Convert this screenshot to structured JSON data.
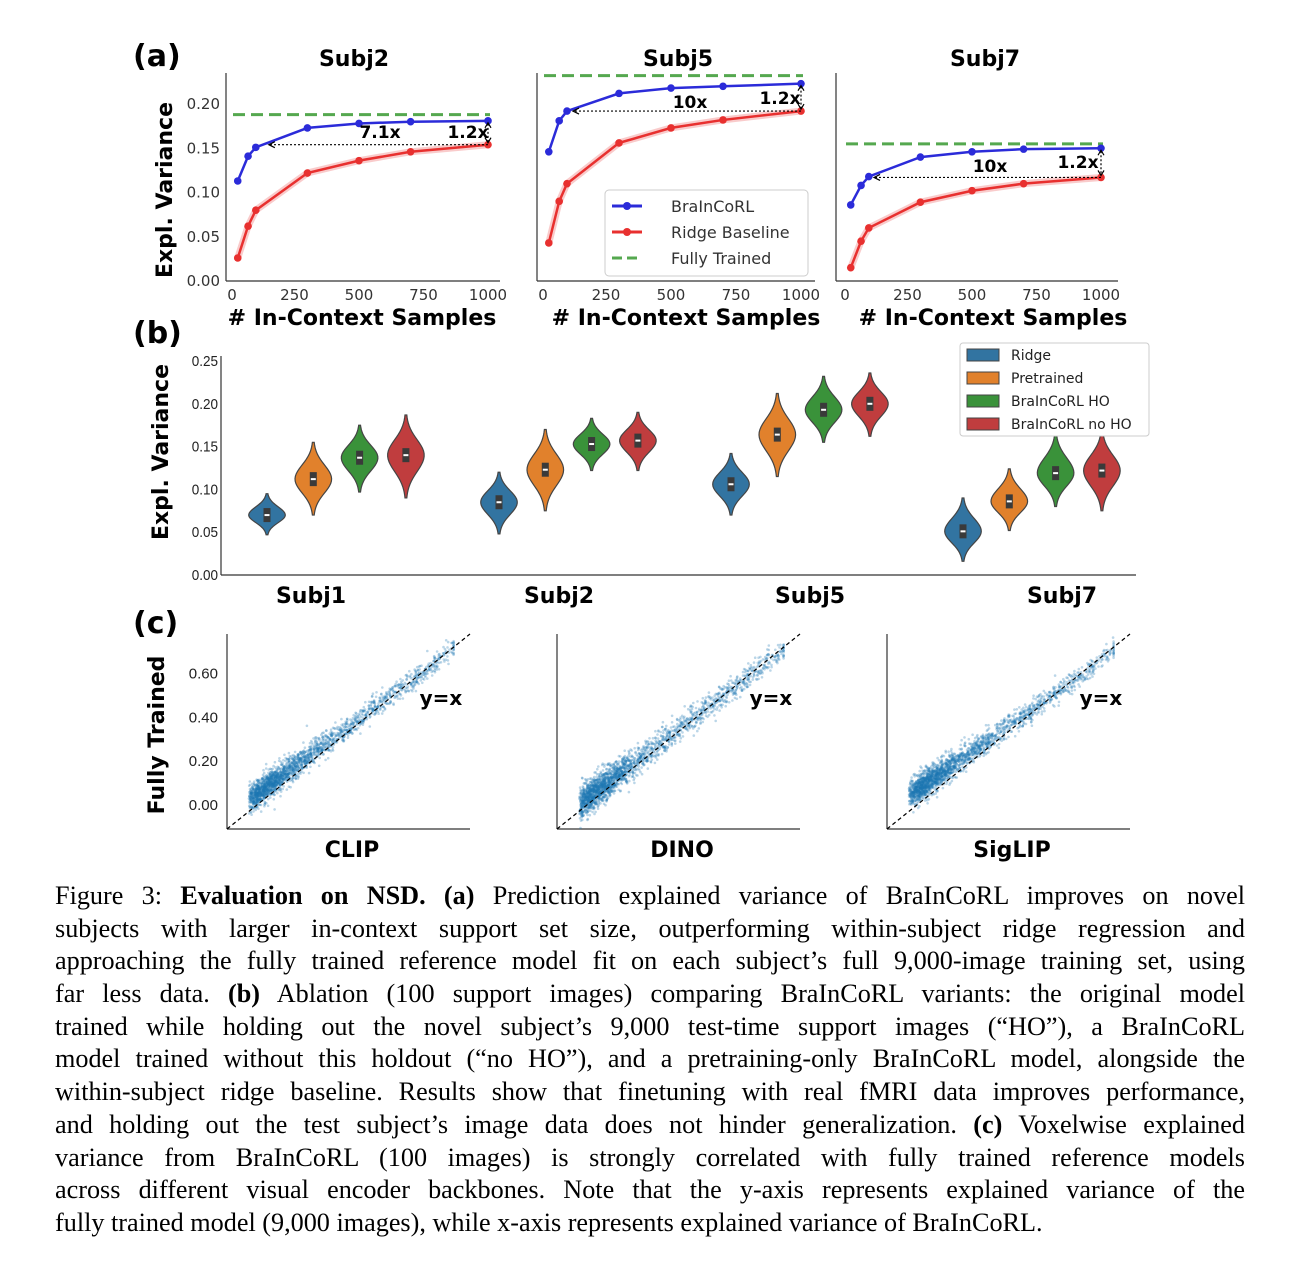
{
  "panel_labels": {
    "a": "(a)",
    "b": "(b)",
    "c": "(c)"
  },
  "chart_data": [
    {
      "panel": "a",
      "type": "line",
      "ylabel": "Expl. Variance",
      "xlabel": "# In-Context Samples",
      "xlim": [
        0,
        1000
      ],
      "ylim": [
        0,
        0.235
      ],
      "xticks": [
        "0",
        "250",
        "500",
        "750",
        "1000"
      ],
      "yticks": [
        "0.00",
        "0.05",
        "0.10",
        "0.15",
        "0.20"
      ],
      "legend": {
        "placement": "lower-right of Subj5",
        "entries": [
          "BraInCoRL",
          "Ridge Baseline",
          "Fully Trained"
        ]
      },
      "colors": {
        "BraInCoRL": "#2b2bd9",
        "Ridge Baseline": "#e8302f",
        "Fully Trained": "#55a84f"
      },
      "x": [
        30,
        70,
        100,
        300,
        500,
        700,
        1000
      ],
      "subplots": [
        {
          "title": "Subj2",
          "series": [
            {
              "name": "BraInCoRL",
              "values": [
                0.113,
                0.141,
                0.151,
                0.173,
                0.178,
                0.18,
                0.181
              ]
            },
            {
              "name": "Ridge Baseline",
              "values": [
                0.026,
                0.062,
                0.08,
                0.122,
                0.136,
                0.146,
                0.154
              ]
            },
            {
              "name": "Fully Trained",
              "value": 0.188
            }
          ],
          "annotations": [
            "7.1x",
            "1.2x"
          ]
        },
        {
          "title": "Subj5",
          "series": [
            {
              "name": "BraInCoRL",
              "values": [
                0.146,
                0.181,
                0.192,
                0.212,
                0.218,
                0.22,
                0.223
              ]
            },
            {
              "name": "Ridge Baseline",
              "values": [
                0.043,
                0.09,
                0.11,
                0.156,
                0.173,
                0.182,
                0.192
              ]
            },
            {
              "name": "Fully Trained",
              "value": 0.232
            }
          ],
          "annotations": [
            "10x",
            "1.2x"
          ]
        },
        {
          "title": "Subj7",
          "series": [
            {
              "name": "BraInCoRL",
              "values": [
                0.086,
                0.108,
                0.118,
                0.14,
                0.146,
                0.149,
                0.15
              ]
            },
            {
              "name": "Ridge Baseline",
              "values": [
                0.015,
                0.045,
                0.06,
                0.089,
                0.102,
                0.11,
                0.117
              ]
            },
            {
              "name": "Fully Trained",
              "value": 0.155
            }
          ],
          "annotations": [
            "10x",
            "1.2x"
          ]
        }
      ]
    },
    {
      "panel": "b",
      "type": "violin",
      "ylabel": "Expl. Variance",
      "ylim": [
        0,
        0.25
      ],
      "yticks": [
        "0.00",
        "0.05",
        "0.10",
        "0.15",
        "0.20",
        "0.25"
      ],
      "categories": [
        "Subj1",
        "Subj2",
        "Subj5",
        "Subj7"
      ],
      "legend": {
        "placement": "top-right",
        "entries": [
          "Ridge",
          "Pretrained",
          "BraInCoRL HO",
          "BraInCoRL no HO"
        ]
      },
      "colors": [
        "#3274a1",
        "#e1812c",
        "#3a923a",
        "#c03d3e"
      ],
      "series": [
        {
          "name": "Ridge",
          "median": [
            0.07,
            0.085,
            0.106,
            0.051
          ],
          "min": [
            0.047,
            0.048,
            0.07,
            0.016
          ],
          "max": [
            0.095,
            0.12,
            0.142,
            0.09
          ]
        },
        {
          "name": "Pretrained",
          "median": [
            0.112,
            0.123,
            0.164,
            0.086
          ],
          "min": [
            0.07,
            0.075,
            0.115,
            0.052
          ],
          "max": [
            0.155,
            0.17,
            0.212,
            0.124
          ]
        },
        {
          "name": "BraInCoRL HO",
          "median": [
            0.137,
            0.153,
            0.193,
            0.119
          ],
          "min": [
            0.097,
            0.122,
            0.155,
            0.08
          ],
          "max": [
            0.175,
            0.183,
            0.232,
            0.165
          ]
        },
        {
          "name": "BraInCoRL no HO",
          "median": [
            0.14,
            0.157,
            0.2,
            0.122
          ],
          "min": [
            0.09,
            0.122,
            0.162,
            0.075
          ],
          "max": [
            0.187,
            0.19,
            0.236,
            0.168
          ]
        }
      ]
    },
    {
      "panel": "c",
      "type": "scatter",
      "ylabel": "Fully Trained",
      "ylim": [
        -0.11,
        0.78
      ],
      "xlim": [
        -0.11,
        0.78
      ],
      "yticks": [
        "0.00",
        "0.20",
        "0.40",
        "0.60"
      ],
      "reference_line": "y=x",
      "color": "#1f77b4",
      "subplots": [
        {
          "xlabel": "CLIP"
        },
        {
          "xlabel": "DINO"
        },
        {
          "xlabel": "SigLIP"
        }
      ]
    }
  ],
  "caption": {
    "lines": [
      [
        {
          "t": "Figure 3: "
        },
        {
          "t": "Evaluation on NSD.",
          "b": true
        },
        {
          "t": " "
        },
        {
          "t": "(a)",
          "b": true
        },
        {
          "t": " Prediction explained variance of BraInCoRL improves on novel"
        }
      ],
      [
        {
          "t": "subjects with larger in-context support set size, outperforming within-subject ridge regression and"
        }
      ],
      [
        {
          "t": "approaching the fully trained reference model fit on each subject’s full 9,000-image training set, using"
        }
      ],
      [
        {
          "t": "far less data. "
        },
        {
          "t": "(b)",
          "b": true
        },
        {
          "t": " Ablation (100 support images) comparing BraInCoRL variants: the original model"
        }
      ],
      [
        {
          "t": "trained while holding out the novel subject’s 9,000 test-time support images (“HO”), a BraInCoRL"
        }
      ],
      [
        {
          "t": "model trained without this holdout (“no HO”), and a pretraining-only BraInCoRL model, alongside the"
        }
      ],
      [
        {
          "t": "within-subject ridge baseline. Results show that finetuning with real fMRI data improves performance,"
        }
      ],
      [
        {
          "t": "and holding out the test subject’s image data does not hinder generalization. "
        },
        {
          "t": "(c)",
          "b": true
        },
        {
          "t": " Voxelwise explained"
        }
      ],
      [
        {
          "t": "variance from BraInCoRL (100 images) is strongly correlated with fully trained reference models"
        }
      ],
      [
        {
          "t": "across different visual encoder backbones. Note that the y-axis represents explained variance of the"
        }
      ],
      [
        {
          "t": "fully trained model (9,000 images), while x-axis represents explained variance of BraInCoRL."
        }
      ]
    ]
  }
}
